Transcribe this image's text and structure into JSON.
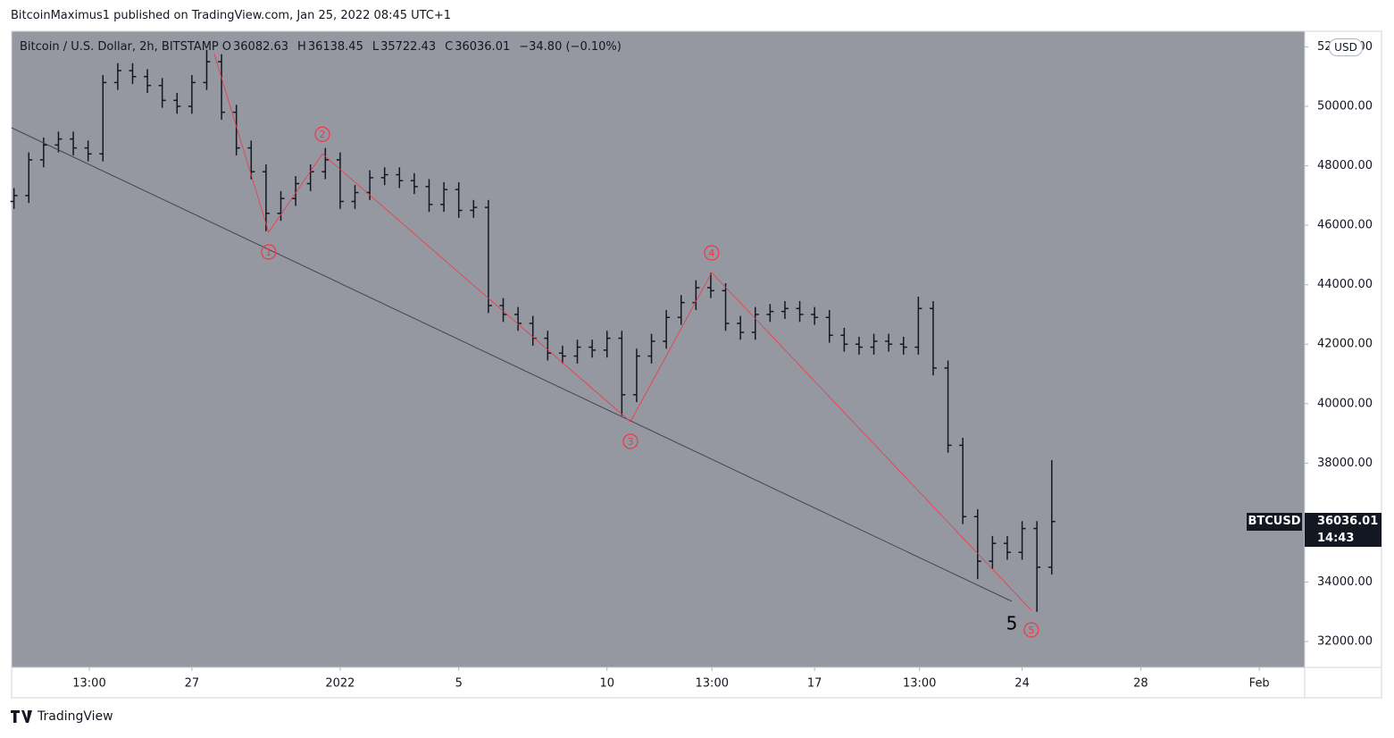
{
  "header": "BitcoinMaximus1 published on TradingView.com, Jan 25, 2022 08:45 UTC+1",
  "legend": [
    "Bitcoin / U.S. Dollar, 2h, BITSTAMP",
    "O",
    "36082.63",
    "H",
    "36138.45",
    "L",
    "35722.43",
    "C",
    "36036.01",
    "−34.80 (−0.10%)"
  ],
  "currency": "USD",
  "symbol": "BTCUSD",
  "countdown": "14:43",
  "footer": "TradingView",
  "chart_data": {
    "type": "ohlc",
    "color": "#131722",
    "xlim": [
      -11.08,
      32.53
    ],
    "ylim": [
      31129,
      52524
    ],
    "grid": false,
    "xticks": [
      {
        "value": -8.46,
        "label": "13:00"
      },
      {
        "value": -5,
        "label": "27"
      },
      {
        "value": 0,
        "label": "2022"
      },
      {
        "value": 4,
        "label": "5"
      },
      {
        "value": 9,
        "label": "10"
      },
      {
        "value": 12.54,
        "label": "13:00"
      },
      {
        "value": 16,
        "label": "17"
      },
      {
        "value": 19.54,
        "label": "13:00"
      },
      {
        "value": 23,
        "label": "24"
      },
      {
        "value": 27,
        "label": "28"
      },
      {
        "value": 31,
        "label": "Feb"
      }
    ],
    "yticks": [
      {
        "value": 32000,
        "label": "32000.00"
      },
      {
        "value": 34000,
        "label": "34000.00"
      },
      {
        "value": 36000,
        "label": "36000.00"
      },
      {
        "value": 38000,
        "label": "38000.00"
      },
      {
        "value": 40000,
        "label": "40000.00"
      },
      {
        "value": 42000,
        "label": "42000.00"
      },
      {
        "value": 44000,
        "label": "44000.00"
      },
      {
        "value": 46000,
        "label": "46000.00"
      },
      {
        "value": 48000,
        "label": "48000.00"
      },
      {
        "value": 50000,
        "label": "50000.00"
      },
      {
        "value": 52000,
        "label": "52000.00"
      }
    ],
    "x": [
      -11,
      -10.5,
      -10,
      -9.5,
      -9,
      -8.5,
      -8,
      -7.5,
      -7,
      -6.5,
      -6,
      -5.5,
      -5,
      -4.5,
      -4,
      -3.5,
      -3,
      -2.5,
      -2,
      -1.5,
      -1,
      -0.5,
      0,
      0.5,
      1,
      1.5,
      2,
      2.5,
      3,
      3.5,
      4,
      4.5,
      5,
      5.5,
      6,
      6.5,
      7,
      7.5,
      8,
      8.5,
      9,
      9.5,
      10,
      10.5,
      11,
      11.5,
      12,
      12.5,
      13,
      13.5,
      14,
      14.5,
      15,
      15.5,
      16,
      16.5,
      17,
      17.5,
      18,
      18.5,
      19,
      19.5,
      20,
      20.5,
      21,
      21.5,
      22,
      22.5,
      23,
      23.5,
      24
    ],
    "open": [
      46800,
      47000,
      48200,
      48700,
      48900,
      48600,
      48400,
      50800,
      51200,
      51000,
      50700,
      50200,
      50000,
      50800,
      51500,
      49800,
      48600,
      47800,
      46400,
      46900,
      47400,
      47800,
      48200,
      46800,
      47100,
      47600,
      47700,
      47500,
      47300,
      46700,
      47200,
      46500,
      46600,
      43300,
      43000,
      42700,
      42200,
      41700,
      41600,
      41900,
      41800,
      42200,
      40300,
      41600,
      42100,
      42900,
      43400,
      43900,
      43800,
      42700,
      42400,
      43000,
      43100,
      43200,
      43000,
      42900,
      42300,
      42000,
      41900,
      42100,
      42000,
      41900,
      43200,
      41200,
      38600,
      36200,
      34700,
      35300,
      35000,
      35800,
      34500
    ],
    "high": [
      47250,
      48450,
      48950,
      49150,
      49150,
      48850,
      51050,
      51450,
      51450,
      51250,
      50950,
      50450,
      51050,
      51900,
      51750,
      50050,
      48850,
      48050,
      47150,
      47650,
      48050,
      48600,
      48450,
      47350,
      47850,
      47950,
      47950,
      47750,
      47550,
      47450,
      47450,
      46850,
      46850,
      43550,
      43250,
      42950,
      42450,
      41950,
      42150,
      42150,
      42450,
      42450,
      41850,
      42350,
      43150,
      43650,
      44150,
      44400,
      44050,
      42950,
      43250,
      43350,
      43450,
      43450,
      43250,
      43150,
      42550,
      42250,
      42350,
      42350,
      42250,
      43600,
      43450,
      41450,
      38850,
      36450,
      35550,
      35550,
      36050,
      36050,
      38100
    ],
    "low": [
      46550,
      46750,
      47950,
      48450,
      48350,
      48150,
      48150,
      50550,
      50750,
      50450,
      49950,
      49750,
      49750,
      50550,
      49550,
      48350,
      47550,
      45800,
      46150,
      46650,
      47150,
      47550,
      46550,
      46550,
      46850,
      47350,
      47250,
      47050,
      46450,
      46450,
      46250,
      46250,
      43050,
      42750,
      42450,
      41950,
      41450,
      41350,
      41350,
      41550,
      41550,
      39600,
      40050,
      41350,
      41850,
      42650,
      43150,
      43550,
      42450,
      42150,
      42150,
      42750,
      42850,
      42750,
      42650,
      42050,
      41750,
      41650,
      41650,
      41750,
      41650,
      41650,
      40950,
      38350,
      35950,
      34100,
      34450,
      34750,
      34750,
      33000,
      34250
    ],
    "close": [
      47000,
      48200,
      48700,
      48900,
      48600,
      48400,
      50800,
      51200,
      51000,
      50700,
      50200,
      50000,
      50800,
      51500,
      49800,
      48600,
      47800,
      46400,
      46900,
      47400,
      47800,
      48200,
      46800,
      47100,
      47600,
      47700,
      47500,
      47300,
      46700,
      47200,
      46500,
      46600,
      43300,
      43000,
      42700,
      42200,
      41700,
      41600,
      41900,
      41800,
      42200,
      40300,
      41600,
      42100,
      42900,
      43400,
      43900,
      43800,
      42700,
      42400,
      43000,
      43100,
      43200,
      43000,
      42900,
      42300,
      42000,
      41900,
      42100,
      42000,
      41900,
      43200,
      41200,
      38600,
      36200,
      34700,
      35300,
      35000,
      35800,
      34500,
      36036.01
    ],
    "trendline": {
      "color": "#434651",
      "x": [
        -11.08,
        22.65
      ],
      "y": [
        49279,
        33353
      ]
    },
    "waves": {
      "color": "#f23645",
      "labels": [
        null,
        "1",
        "2",
        "3",
        "4",
        "5"
      ],
      "x": [
        -4.25,
        -2.41,
        -0.6,
        9.79,
        12.53,
        23.31
      ],
      "y": [
        51773,
        45763,
        48400,
        39393,
        44411,
        33053
      ]
    },
    "annotations": [
      {
        "text": "5",
        "x": 22.65,
        "y": 32570
      }
    ]
  }
}
